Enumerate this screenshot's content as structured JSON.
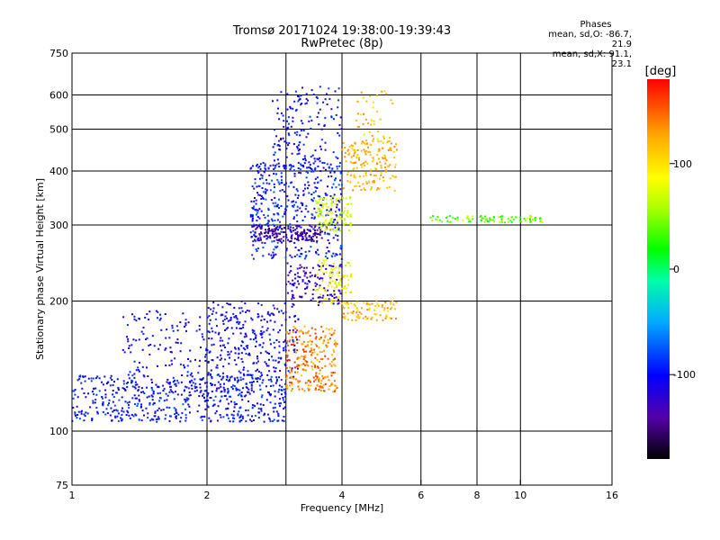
{
  "header": {
    "title_line1": "Tromsø 20171024 19:38:00-19:39:43",
    "title_line2": "RwPretec (8p)"
  },
  "phases_box": {
    "heading": "Phases",
    "line_o": "mean, sd,O: -86.7, 21.9",
    "line_x": "mean, sd,X:  91.1, 23.1"
  },
  "chart_data": {
    "type": "scatter",
    "title": "Tromsø 20171024 19:38:00-19:39:43",
    "subtitle": "RwPretec (8p)",
    "xlabel": "Frequency [MHz]",
    "ylabel": "Stationary phase Virtual Height [km]",
    "x_scale": "log",
    "y_scale": "log",
    "xlim": [
      1,
      16
    ],
    "ylim": [
      75,
      750
    ],
    "x_ticks": [
      1,
      2,
      4,
      6,
      8,
      10,
      16
    ],
    "x_tick_labels": [
      "1",
      "2",
      "4",
      "6",
      "8",
      "10",
      "16"
    ],
    "x_grid": [
      2,
      3,
      4,
      6,
      8,
      10
    ],
    "y_ticks": [
      75,
      100,
      200,
      300,
      400,
      500,
      600,
      750
    ],
    "y_tick_labels": [
      "75",
      "100",
      "200",
      "300",
      "400",
      "500",
      "600",
      "750"
    ],
    "y_grid": [
      100,
      200,
      300,
      400,
      500,
      600
    ],
    "grid": true,
    "colorbar": {
      "label": "[deg]",
      "range": [
        -180,
        180
      ],
      "ticks": [
        100,
        0,
        -100
      ],
      "tick_labels": [
        "100",
        "0",
        "-100"
      ],
      "colors": [
        "#000000",
        "#5500aa",
        "#0000ff",
        "#00aaff",
        "#00ffaa",
        "#00ff00",
        "#aaff00",
        "#ffff00",
        "#ffaa00",
        "#ff0000"
      ]
    },
    "clusters": [
      {
        "name": "",
        "f": [
          1.0,
          3.0
        ],
        "h": [
          105,
          135
        ],
        "phase": [
          -120,
          -75
        ],
        "n": 520
      },
      {
        "name": "",
        "f": [
          1.3,
          3.0
        ],
        "h": [
          120,
          190
        ],
        "phase": [
          -125,
          -85
        ],
        "n": 320
      },
      {
        "name": "",
        "f": [
          2.0,
          3.2
        ],
        "h": [
          130,
          200
        ],
        "phase": [
          -130,
          -85
        ],
        "n": 180
      },
      {
        "name": "",
        "f": [
          3.0,
          3.9
        ],
        "h": [
          123,
          175
        ],
        "phase": [
          110,
          170
        ],
        "n": 260
      },
      {
        "name": "",
        "f": [
          3.0,
          4.0
        ],
        "h": [
          195,
          245
        ],
        "phase": [
          -150,
          -105
        ],
        "n": 120
      },
      {
        "name": "",
        "f": [
          3.5,
          4.2
        ],
        "h": [
          195,
          250
        ],
        "phase": [
          60,
          110
        ],
        "n": 90
      },
      {
        "name": "",
        "f": [
          4.0,
          5.3
        ],
        "h": [
          180,
          200
        ],
        "phase": [
          100,
          140
        ],
        "n": 80
      },
      {
        "name": "",
        "f": [
          2.5,
          4.0
        ],
        "h": [
          250,
          420
        ],
        "phase": [
          -125,
          -70
        ],
        "n": 480
      },
      {
        "name": "",
        "f": [
          2.5,
          3.6
        ],
        "h": [
          275,
          300
        ],
        "phase": [
          -160,
          -130
        ],
        "n": 140
      },
      {
        "name": "",
        "f": [
          2.8,
          4.0
        ],
        "h": [
          400,
          630
        ],
        "phase": [
          -120,
          -80
        ],
        "n": 170
      },
      {
        "name": "",
        "f": [
          3.5,
          4.2
        ],
        "h": [
          290,
          350
        ],
        "phase": [
          50,
          90
        ],
        "n": 110
      },
      {
        "name": "",
        "f": [
          4.0,
          5.3
        ],
        "h": [
          360,
          470
        ],
        "phase": [
          100,
          140
        ],
        "n": 160
      },
      {
        "name": "",
        "f": [
          4.3,
          5.2
        ],
        "h": [
          470,
          620
        ],
        "phase": [
          100,
          135
        ],
        "n": 40
      },
      {
        "name": "",
        "f": [
          6.3,
          11.2
        ],
        "h": [
          304,
          315
        ],
        "phase": [
          0,
          80
        ],
        "n": 90
      }
    ]
  }
}
